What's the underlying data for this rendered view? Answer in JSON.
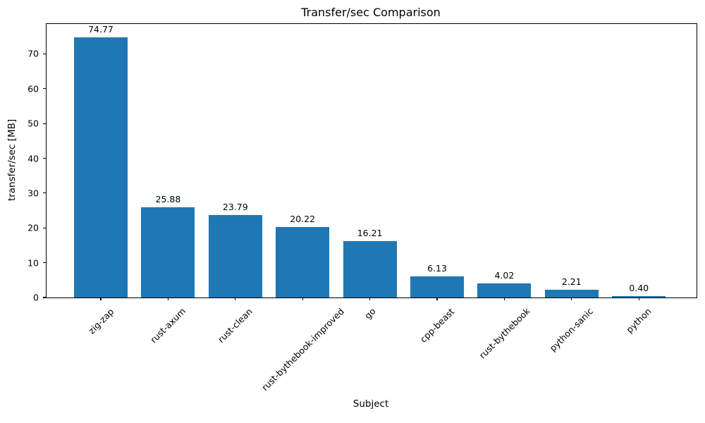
{
  "chart_data": {
    "type": "bar",
    "title": "Transfer/sec Comparison",
    "xlabel": "Subject",
    "ylabel": "transfer/sec [MB]",
    "categories": [
      "zig-zap",
      "rust-axum",
      "rust-clean",
      "rust-bythebook-improved",
      "go",
      "cpp-beast",
      "rust-bythebook",
      "python-sanic",
      "python"
    ],
    "values": [
      74.77,
      25.88,
      23.79,
      20.22,
      16.21,
      6.13,
      4.02,
      2.21,
      0.4
    ],
    "value_labels": [
      "74.77",
      "25.88",
      "23.79",
      "20.22",
      "16.21",
      "6.13",
      "4.02",
      "2.21",
      "0.40"
    ],
    "yticks": [
      0,
      10,
      20,
      30,
      40,
      50,
      60,
      70
    ],
    "ytick_labels": [
      "0",
      "10",
      "20",
      "30",
      "40",
      "50",
      "60",
      "70"
    ],
    "ylim": [
      0,
      78.6
    ],
    "bar_color": "#1f77b4",
    "axis_color": "#000000",
    "grid": false,
    "legend_position": "none",
    "x_tick_rotation_deg": 45
  }
}
